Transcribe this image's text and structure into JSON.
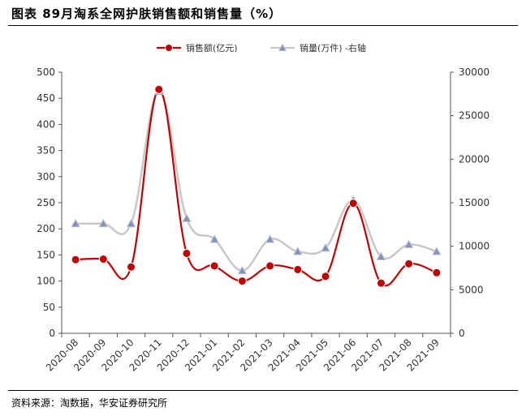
{
  "header": {
    "title": "图表 89月淘系全网护肤销售额和销售量（%）"
  },
  "footer": {
    "source": "资料来源：淘数据，华安证券研究所"
  },
  "chart_data": {
    "type": "line",
    "categories": [
      "2020-08",
      "2020-09",
      "2020-10",
      "2020-11",
      "2020-12",
      "2021-01",
      "2021-02",
      "2021-03",
      "2021-04",
      "2021-05",
      "2021-06",
      "2021-07",
      "2021-08",
      "2021-09"
    ],
    "series": [
      {
        "name": "销售额(亿元)",
        "axis": "left",
        "color": "#c00000",
        "marker": "circle",
        "values": [
          141,
          142,
          127,
          467,
          153,
          129,
          100,
          129,
          122,
          109,
          249,
          96,
          133,
          116
        ]
      },
      {
        "name": "销量(万件) -右轴",
        "axis": "right",
        "color": "#c8c8c8",
        "marker_color": "#7f93c2",
        "marker": "triangle",
        "values": [
          12600,
          12600,
          12600,
          27800,
          13200,
          10800,
          7200,
          10800,
          9400,
          9800,
          15300,
          8800,
          10200,
          9400
        ]
      }
    ],
    "y_left": {
      "min": 0,
      "max": 500,
      "step": 50
    },
    "y_right": {
      "min": 0,
      "max": 30000,
      "step": 5000
    },
    "grid": false,
    "legend_position": "top-center",
    "smooth": true
  }
}
